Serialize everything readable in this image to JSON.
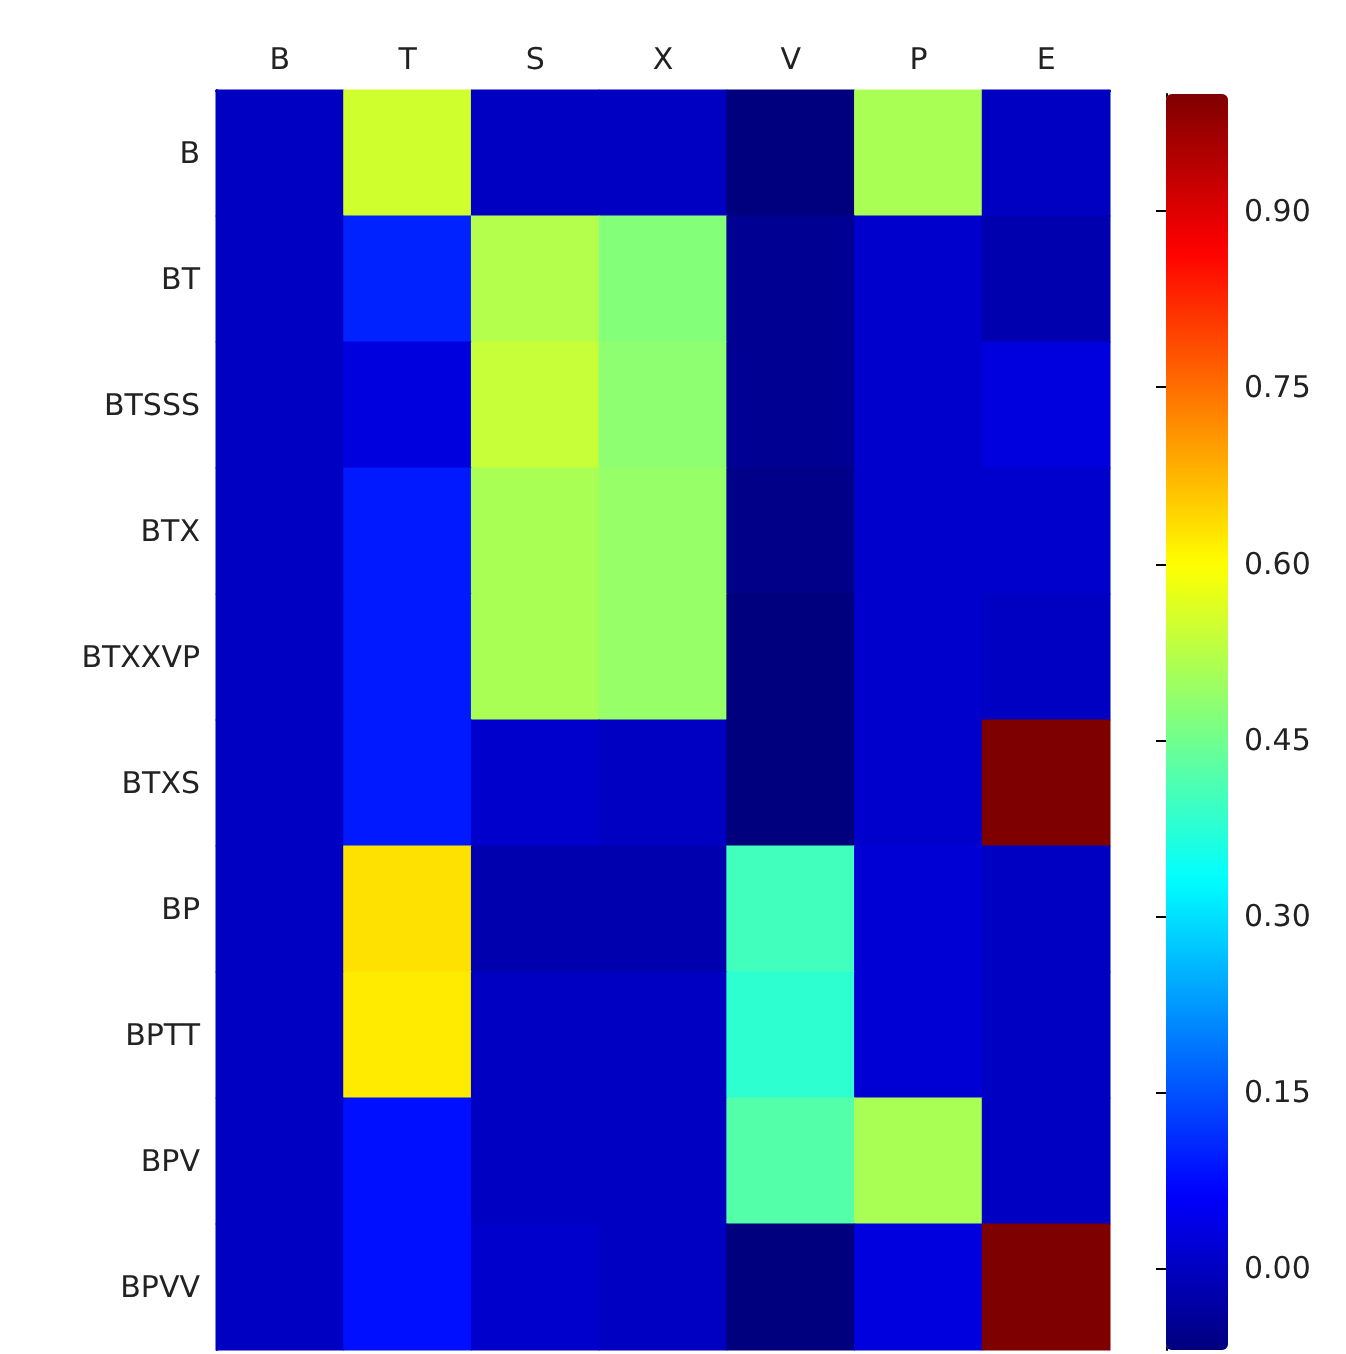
{
  "chart_data": {
    "type": "heatmap",
    "categories": [
      "B",
      "T",
      "S",
      "X",
      "V",
      "P",
      "E"
    ],
    "y_categories": [
      "B",
      "BT",
      "BTSSS",
      "BTX",
      "BTXXVP",
      "BTXS",
      "BP",
      "BPTT",
      "BPV",
      "BPVV"
    ],
    "cells": [
      [
        0.0,
        0.55,
        0.0,
        0.0,
        -0.07,
        0.51,
        0.0
      ],
      [
        0.0,
        0.1,
        0.52,
        0.47,
        -0.05,
        0.01,
        -0.02
      ],
      [
        0.0,
        0.03,
        0.54,
        0.48,
        -0.05,
        0.01,
        0.03
      ],
      [
        0.0,
        0.09,
        0.51,
        0.49,
        -0.06,
        0.01,
        0.01
      ],
      [
        0.0,
        0.09,
        0.51,
        0.49,
        -0.07,
        0.01,
        0.0
      ],
      [
        0.0,
        0.09,
        0.01,
        0.0,
        -0.07,
        0.01,
        1.0
      ],
      [
        0.0,
        0.63,
        -0.02,
        -0.02,
        0.4,
        0.02,
        0.0
      ],
      [
        0.0,
        0.62,
        0.0,
        0.0,
        0.38,
        0.02,
        0.0
      ],
      [
        0.0,
        0.08,
        0.0,
        0.0,
        0.42,
        0.51,
        0.0
      ],
      [
        0.0,
        0.08,
        0.01,
        0.0,
        -0.07,
        0.03,
        1.0
      ]
    ],
    "clim": [
      -0.07,
      1.0
    ],
    "cticks": [
      {
        "value": 0,
        "label": "0.00"
      },
      {
        "value": 0.15,
        "label": "0.15"
      },
      {
        "value": 0.3,
        "label": "0.30"
      },
      {
        "value": 0.45,
        "label": "0.45"
      },
      {
        "value": 0.6,
        "label": "0.60"
      },
      {
        "value": 0.75,
        "label": "0.75"
      },
      {
        "value": 0.9,
        "label": "0.90"
      }
    ]
  }
}
